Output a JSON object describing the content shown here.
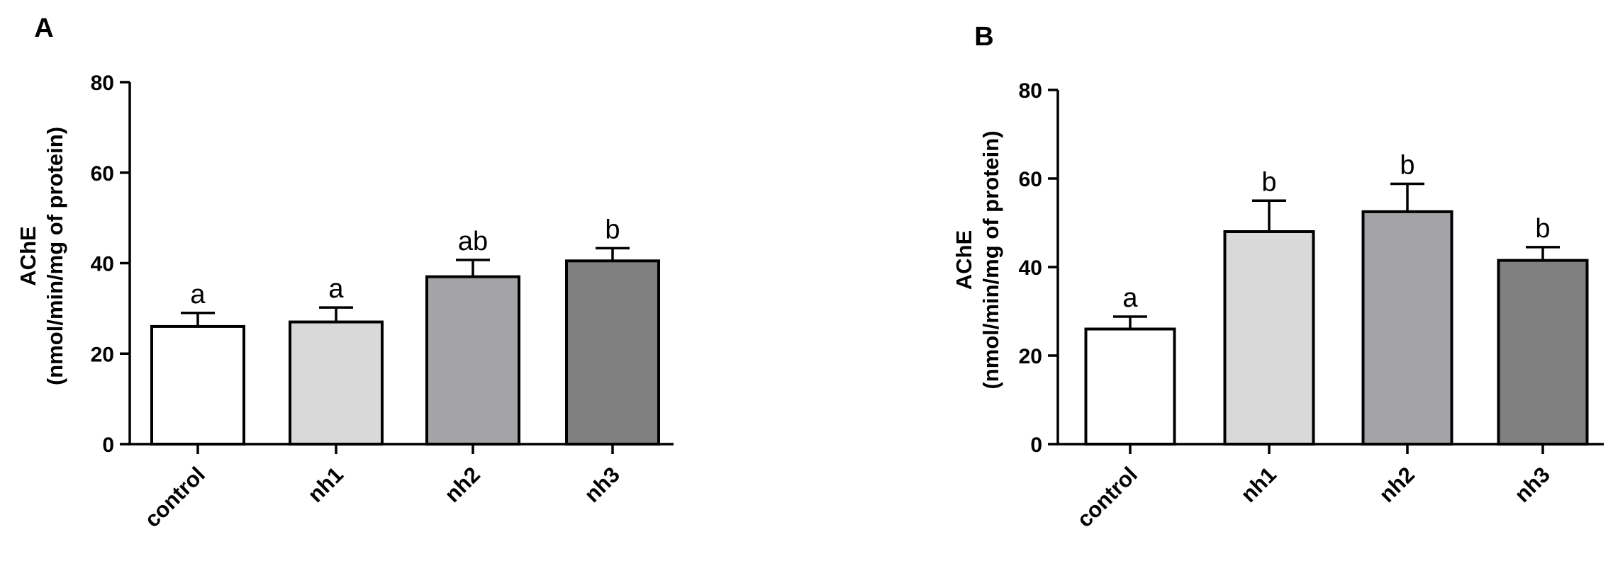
{
  "chart_data": [
    {
      "panel": "A",
      "type": "bar",
      "categories": [
        "control",
        "nh1",
        "nh2",
        "nh3"
      ],
      "values": [
        26,
        27,
        37,
        40.5
      ],
      "errors": [
        3,
        3.2,
        3.7,
        2.8
      ],
      "significance": [
        "a",
        "a",
        "ab",
        "b"
      ],
      "bar_colors": [
        "#ffffff",
        "#d9d9d9",
        "#a4a4a8",
        "#808080"
      ],
      "ylabel_line1": "AChE",
      "ylabel_line2": "(nmol/min/mg of protein)",
      "ylim": [
        0,
        80
      ],
      "yticks": [
        0,
        20,
        40,
        60,
        80
      ],
      "grid": false
    },
    {
      "panel": "B",
      "type": "bar",
      "categories": [
        "control",
        "nh1",
        "nh2",
        "nh3"
      ],
      "values": [
        26,
        48,
        52.5,
        41.5
      ],
      "errors": [
        2.8,
        7,
        6.3,
        3
      ],
      "significance": [
        "a",
        "b",
        "b",
        "b"
      ],
      "bar_colors": [
        "#ffffff",
        "#d9d9d9",
        "#a4a4a8",
        "#808080"
      ],
      "ylabel_line1": "AChE",
      "ylabel_line2": "(nmol/min/mg of protein)",
      "ylim": [
        0,
        80
      ],
      "yticks": [
        0,
        20,
        40,
        60,
        80
      ],
      "grid": false
    }
  ]
}
